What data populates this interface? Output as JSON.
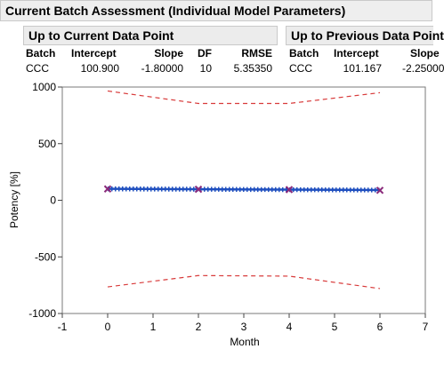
{
  "header": {
    "title": "Current Batch Assessment (Individual Model Parameters)"
  },
  "current_panel": {
    "title": "Up to Current Data Point",
    "columns": [
      "Batch",
      "Intercept",
      "Slope",
      "DF",
      "RMSE"
    ],
    "row": [
      "CCC",
      "100.900",
      "-1.80000",
      "10",
      "5.35350"
    ]
  },
  "previous_panel": {
    "title": "Up to Previous Data Point",
    "columns": [
      "Batch",
      "Intercept",
      "Slope"
    ],
    "row": [
      "CCC",
      "101.167",
      "-2.25000"
    ]
  },
  "chart_data": {
    "type": "line",
    "xlabel": "Month",
    "ylabel": "Potency [%]",
    "xlim": [
      -1,
      7
    ],
    "ylim": [
      -1000,
      1000
    ],
    "xticks": [
      -1,
      0,
      1,
      2,
      3,
      4,
      5,
      6,
      7
    ],
    "yticks": [
      -1000,
      -500,
      0,
      500,
      1000
    ],
    "grid": false,
    "points": {
      "x": [
        0,
        2,
        4,
        6
      ],
      "y": [
        100,
        97,
        94,
        88
      ]
    },
    "series": [
      {
        "style": "solid-blue",
        "x": [
          0,
          6
        ],
        "y": [
          100.9,
          90.1
        ]
      },
      {
        "style": "dotted-blue",
        "x": [
          0,
          6
        ],
        "y": [
          115,
          103
        ]
      },
      {
        "style": "dotted-blue",
        "x": [
          0,
          6
        ],
        "y": [
          87,
          77
        ]
      },
      {
        "style": "dashed-red",
        "x": [
          0,
          2,
          4,
          6
        ],
        "y": [
          965,
          855,
          855,
          950
        ]
      },
      {
        "style": "dashed-red",
        "x": [
          0,
          2,
          4,
          6
        ],
        "y": [
          -765,
          -665,
          -670,
          -780
        ]
      }
    ],
    "colors": {
      "fit": "#1f4fbf",
      "band": "#1f4fbf",
      "limits": "#d83a3a",
      "marker": "#8a2a7a"
    }
  }
}
